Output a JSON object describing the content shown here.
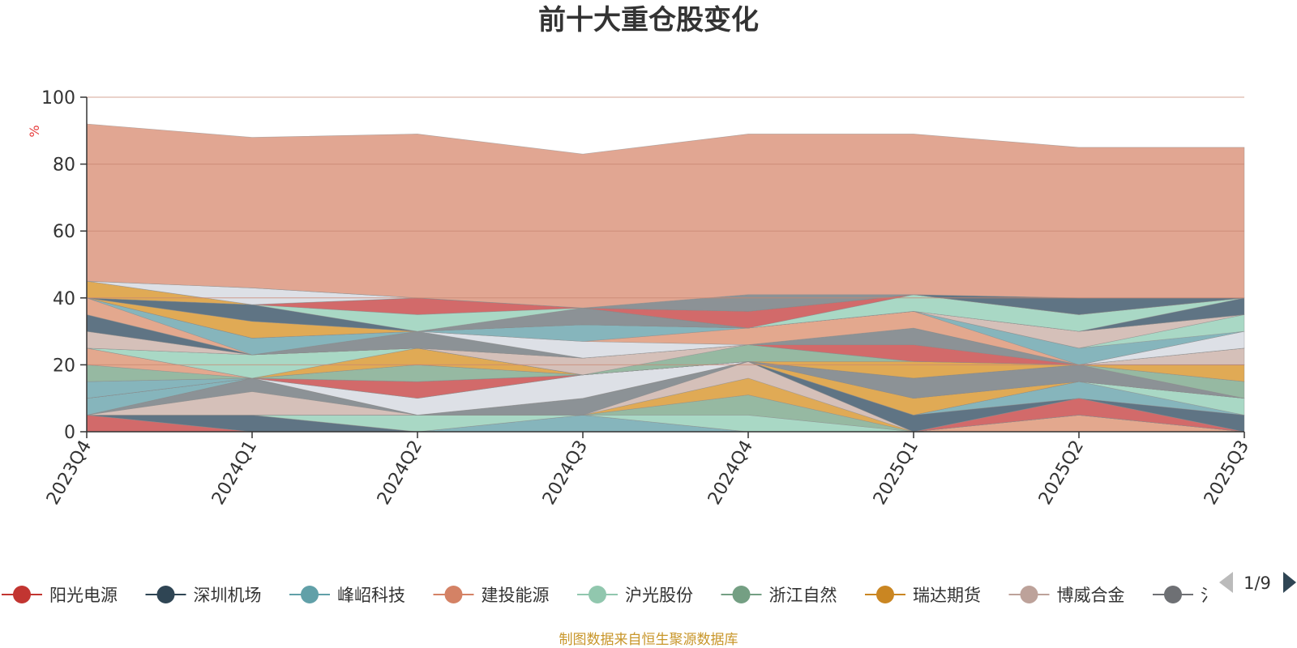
{
  "chart_data": {
    "type": "area",
    "stacked": true,
    "title": "前十大重仓股变化",
    "ylabel": "%",
    "xlabel": "",
    "ylim": [
      0,
      100
    ],
    "yticks": [
      0,
      20,
      40,
      60,
      80,
      100
    ],
    "categories": [
      "2023Q4",
      "2024Q1",
      "2024Q2",
      "2024Q3",
      "2024Q4",
      "2025Q1",
      "2025Q2",
      "2025Q3"
    ],
    "legend_position": "bottom",
    "grid": true,
    "series": [
      {
        "name": "阳光电源",
        "color": "#d26a6a",
        "values": [
          5,
          0,
          0,
          0,
          0,
          0,
          0,
          0
        ]
      },
      {
        "name": "深圳机场",
        "color": "#5f7484",
        "values": [
          0,
          5,
          0,
          0,
          0,
          0,
          0,
          0
        ]
      },
      {
        "name": "峰岹科技",
        "color": "#86b5bc",
        "values": [
          0,
          0,
          0,
          5,
          0,
          0,
          0,
          0
        ]
      },
      {
        "name": "建投能源",
        "color": "#e3a88e",
        "values": [
          0,
          0,
          0,
          0,
          0,
          0,
          5,
          0
        ]
      },
      {
        "name": "沪光股份",
        "color": "#a9d8c5",
        "values": [
          0,
          0,
          5,
          0,
          5,
          0,
          0,
          0
        ]
      },
      {
        "name": "浙江自然",
        "color": "#96b9a2",
        "values": [
          0,
          0,
          0,
          0,
          6,
          0,
          0,
          0
        ]
      },
      {
        "name": "瑞达期货",
        "color": "#e0aa55",
        "values": [
          0,
          0,
          0,
          0,
          5,
          0,
          0,
          0
        ]
      },
      {
        "name": "博威合金",
        "color": "#d5c0b9",
        "values": [
          0,
          7,
          0,
          0,
          5,
          0,
          0,
          0
        ]
      },
      {
        "name": "",
        "color": "#8c9296",
        "values": [
          0,
          4,
          0,
          5,
          0,
          0,
          0,
          0
        ]
      },
      {
        "name": "",
        "color": "#d26a6a",
        "values": [
          0,
          0,
          0,
          0,
          0,
          0,
          5,
          0
        ]
      },
      {
        "name": "",
        "color": "#5f7484",
        "values": [
          0,
          0,
          0,
          0,
          0,
          5,
          0,
          5
        ]
      },
      {
        "name": "",
        "color": "#86b5bc",
        "values": [
          5,
          0,
          0,
          0,
          0,
          0,
          5,
          0
        ]
      },
      {
        "name": "",
        "color": "#a9d8c5",
        "values": [
          0,
          0,
          0,
          0,
          0,
          0,
          0,
          5
        ]
      },
      {
        "name": "",
        "color": "#dde0e6",
        "values": [
          0,
          0,
          5,
          7,
          0,
          0,
          0,
          0
        ]
      },
      {
        "name": "",
        "color": "#e0aa55",
        "values": [
          0,
          0,
          0,
          0,
          0,
          5,
          0,
          0
        ]
      },
      {
        "name": "",
        "color": "#d26a6a",
        "values": [
          0,
          0,
          5,
          0,
          0,
          0,
          0,
          0
        ]
      },
      {
        "name": "",
        "color": "#86b5bc",
        "values": [
          5,
          0,
          0,
          0,
          0,
          0,
          0,
          0
        ]
      },
      {
        "name": "",
        "color": "#8c9296",
        "values": [
          0,
          0,
          0,
          0,
          0,
          6,
          5,
          0
        ]
      },
      {
        "name": "",
        "color": "#96b9a2",
        "values": [
          5,
          0,
          5,
          0,
          0,
          0,
          0,
          5
        ]
      },
      {
        "name": "",
        "color": "#e3a88e",
        "values": [
          5,
          0,
          0,
          0,
          0,
          0,
          0,
          0
        ]
      },
      {
        "name": "",
        "color": "#e0aa55",
        "values": [
          0,
          0,
          5,
          0,
          0,
          0,
          0,
          5
        ]
      },
      {
        "name": "",
        "color": "#a9d8c5",
        "values": [
          0,
          7,
          0,
          0,
          0,
          0,
          0,
          0
        ]
      },
      {
        "name": "",
        "color": "#e0aa55",
        "values": [
          0,
          0,
          0,
          0,
          0,
          5,
          0,
          0
        ]
      },
      {
        "name": "",
        "color": "#96b9a2",
        "values": [
          0,
          0,
          0,
          0,
          5,
          0,
          0,
          0
        ]
      },
      {
        "name": "",
        "color": "#d5c0b9",
        "values": [
          5,
          0,
          0,
          5,
          0,
          0,
          0,
          5
        ]
      },
      {
        "name": "",
        "color": "#d26a6a",
        "values": [
          0,
          0,
          0,
          0,
          0,
          5,
          0,
          0
        ]
      },
      {
        "name": "",
        "color": "#5f7484",
        "values": [
          5,
          0,
          0,
          0,
          0,
          0,
          0,
          0
        ]
      },
      {
        "name": "",
        "color": "#8c9296",
        "values": [
          0,
          0,
          5,
          0,
          0,
          5,
          0,
          0
        ]
      },
      {
        "name": "",
        "color": "#dde0e6",
        "values": [
          0,
          0,
          0,
          5,
          0,
          0,
          0,
          5
        ]
      },
      {
        "name": "",
        "color": "#e3a88e",
        "values": [
          5,
          0,
          0,
          0,
          5,
          5,
          0,
          0
        ]
      },
      {
        "name": "",
        "color": "#86b5bc",
        "values": [
          0,
          5,
          0,
          5,
          0,
          0,
          5,
          0
        ]
      },
      {
        "name": "",
        "color": "#a9d8c5",
        "values": [
          0,
          0,
          0,
          0,
          0,
          0,
          0,
          5
        ]
      },
      {
        "name": "",
        "color": "#d5c0b9",
        "values": [
          0,
          0,
          0,
          0,
          0,
          0,
          5,
          0
        ]
      },
      {
        "name": "",
        "color": "#e0aa55",
        "values": [
          0,
          5,
          0,
          0,
          0,
          0,
          0,
          0
        ]
      },
      {
        "name": "",
        "color": "#8c9296",
        "values": [
          0,
          0,
          0,
          5,
          0,
          0,
          0,
          0
        ]
      },
      {
        "name": "",
        "color": "#5f7484",
        "values": [
          0,
          5,
          0,
          0,
          0,
          0,
          0,
          5
        ]
      },
      {
        "name": "",
        "color": "#a9d8c5",
        "values": [
          0,
          0,
          5,
          0,
          0,
          5,
          5,
          0
        ]
      },
      {
        "name": "",
        "color": "#d26a6a",
        "values": [
          0,
          0,
          5,
          0,
          5,
          0,
          0,
          0
        ]
      },
      {
        "name": "",
        "color": "#e0aa55",
        "values": [
          5,
          0,
          0,
          0,
          0,
          0,
          0,
          0
        ]
      },
      {
        "name": "",
        "color": "#5f7484",
        "values": [
          0,
          0,
          0,
          0,
          0,
          0,
          5,
          0
        ]
      },
      {
        "name": "",
        "color": "#dde0e6",
        "values": [
          0,
          5,
          0,
          0,
          0,
          0,
          0,
          0
        ]
      },
      {
        "name": "",
        "color": "#8c9296",
        "values": [
          0,
          0,
          0,
          0,
          5,
          0,
          0,
          0
        ]
      },
      {
        "name": "",
        "color": "#e1a692",
        "values": [
          47,
          45,
          49,
          46,
          48,
          48,
          45,
          45
        ]
      }
    ]
  },
  "legend": {
    "items": [
      {
        "label": "阳光电源",
        "color": "#c23531"
      },
      {
        "label": "深圳机场",
        "color": "#2f4554"
      },
      {
        "label": "峰岹科技",
        "color": "#61a0a8"
      },
      {
        "label": "建投能源",
        "color": "#d48265"
      },
      {
        "label": "沪光股份",
        "color": "#91c7ae"
      },
      {
        "label": "浙江自然",
        "color": "#749f83"
      },
      {
        "label": "瑞达期货",
        "color": "#ca8622"
      },
      {
        "label": "博威合金",
        "color": "#bda29a"
      },
      {
        "label": "氵",
        "color": "#6e7074"
      }
    ],
    "page_label": "1/9"
  },
  "footer": {
    "source": "制图数据来自恒生聚源数据库"
  }
}
